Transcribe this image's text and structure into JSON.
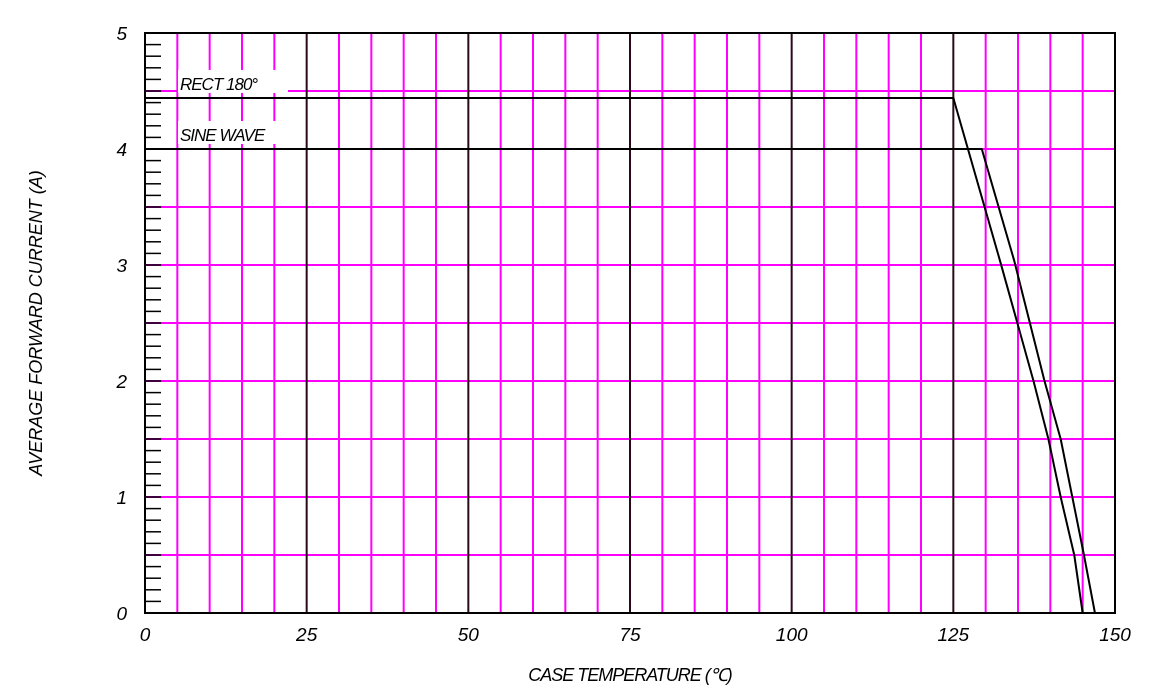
{
  "chart_data": {
    "type": "line",
    "xlabel": "CASE TEMPERATURE (℃)",
    "ylabel": "AVERAGE FORWARD CURRENT (A)",
    "xlim": [
      0,
      150
    ],
    "ylim": [
      0,
      5
    ],
    "xticks": [
      0,
      {
        "value": 5,
        "label": null
      },
      {
        "value": 10,
        "label": null
      },
      {
        "value": 15,
        "label": null
      },
      {
        "value": 20,
        "label": null
      },
      25,
      {
        "value": 30,
        "label": null
      },
      {
        "value": 35,
        "label": null
      },
      {
        "value": 40,
        "label": null
      },
      {
        "value": 45,
        "label": null
      },
      50,
      {
        "value": 55,
        "label": null
      },
      {
        "value": 60,
        "label": null
      },
      {
        "value": 65,
        "label": null
      },
      {
        "value": 70,
        "label": null
      },
      75,
      {
        "value": 80,
        "label": null
      },
      {
        "value": 85,
        "label": null
      },
      {
        "value": 90,
        "label": null
      },
      {
        "value": 95,
        "label": null
      },
      100,
      {
        "value": 105,
        "label": null
      },
      {
        "value": 110,
        "label": null
      },
      {
        "value": 115,
        "label": null
      },
      {
        "value": 120,
        "label": null
      },
      125,
      {
        "value": 130,
        "label": null
      },
      {
        "value": 135,
        "label": null
      },
      {
        "value": 140,
        "label": null
      },
      {
        "value": 145,
        "label": null
      },
      150
    ],
    "yticks": [
      0,
      {
        "value": 0.1,
        "label": null
      },
      {
        "value": 0.2,
        "label": null
      },
      {
        "value": 0.3,
        "label": null
      },
      {
        "value": 0.4,
        "label": null
      },
      {
        "value": 0.5,
        "label": null
      },
      {
        "value": 0.6,
        "label": null
      },
      {
        "value": 0.7,
        "label": null
      },
      {
        "value": 0.8,
        "label": null
      },
      {
        "value": 0.9,
        "label": null
      },
      1,
      {
        "value": 1.1,
        "label": null
      },
      {
        "value": 1.2,
        "label": null
      },
      {
        "value": 1.3,
        "label": null
      },
      {
        "value": 1.4,
        "label": null
      },
      {
        "value": 1.5,
        "label": null
      },
      {
        "value": 1.6,
        "label": null
      },
      {
        "value": 1.7,
        "label": null
      },
      {
        "value": 1.8,
        "label": null
      },
      {
        "value": 1.9,
        "label": null
      },
      2,
      {
        "value": 2.1,
        "label": null
      },
      {
        "value": 2.2,
        "label": null
      },
      {
        "value": 2.3,
        "label": null
      },
      {
        "value": 2.4,
        "label": null
      },
      {
        "value": 2.5,
        "label": null
      },
      {
        "value": 2.6,
        "label": null
      },
      {
        "value": 2.7,
        "label": null
      },
      {
        "value": 2.8,
        "label": null
      },
      {
        "value": 2.9,
        "label": null
      },
      3,
      {
        "value": 3.1,
        "label": null
      },
      {
        "value": 3.2,
        "label": null
      },
      {
        "value": 3.3,
        "label": null
      },
      {
        "value": 3.4,
        "label": null
      },
      {
        "value": 3.5,
        "label": null
      },
      {
        "value": 3.6,
        "label": null
      },
      {
        "value": 3.7,
        "label": null
      },
      {
        "value": 3.8,
        "label": null
      },
      {
        "value": 3.9,
        "label": null
      },
      4,
      {
        "value": 4.1,
        "label": null
      },
      {
        "value": 4.2,
        "label": null
      },
      {
        "value": 4.3,
        "label": null
      },
      {
        "value": 4.4,
        "label": null
      },
      {
        "value": 4.5,
        "label": null
      },
      {
        "value": 4.6,
        "label": null
      },
      {
        "value": 4.7,
        "label": null
      },
      {
        "value": 4.8,
        "label": null
      },
      {
        "value": 4.9,
        "label": null
      },
      5
    ],
    "grid": true,
    "marker": "none",
    "line_style": "solid",
    "legend": "top left",
    "series": [
      {
        "name": "RECT 180°",
        "color": "#000000",
        "x": [
          0,
          125,
          132.2,
          137.4,
          139.7,
          141.6,
          143.7,
          145
        ],
        "values": [
          4.44,
          4.44,
          3.04,
          2.0,
          1.5,
          1.0,
          0.5,
          0
        ]
      },
      {
        "name": "SINE WAVE",
        "color": "#000000",
        "x": [
          0,
          129.4,
          134.4,
          139.1,
          141.6,
          143.4,
          145.2,
          146.9
        ],
        "values": [
          4,
          4,
          3.04,
          2.0,
          1.5,
          1.0,
          0.5,
          0
        ]
      }
    ]
  }
}
